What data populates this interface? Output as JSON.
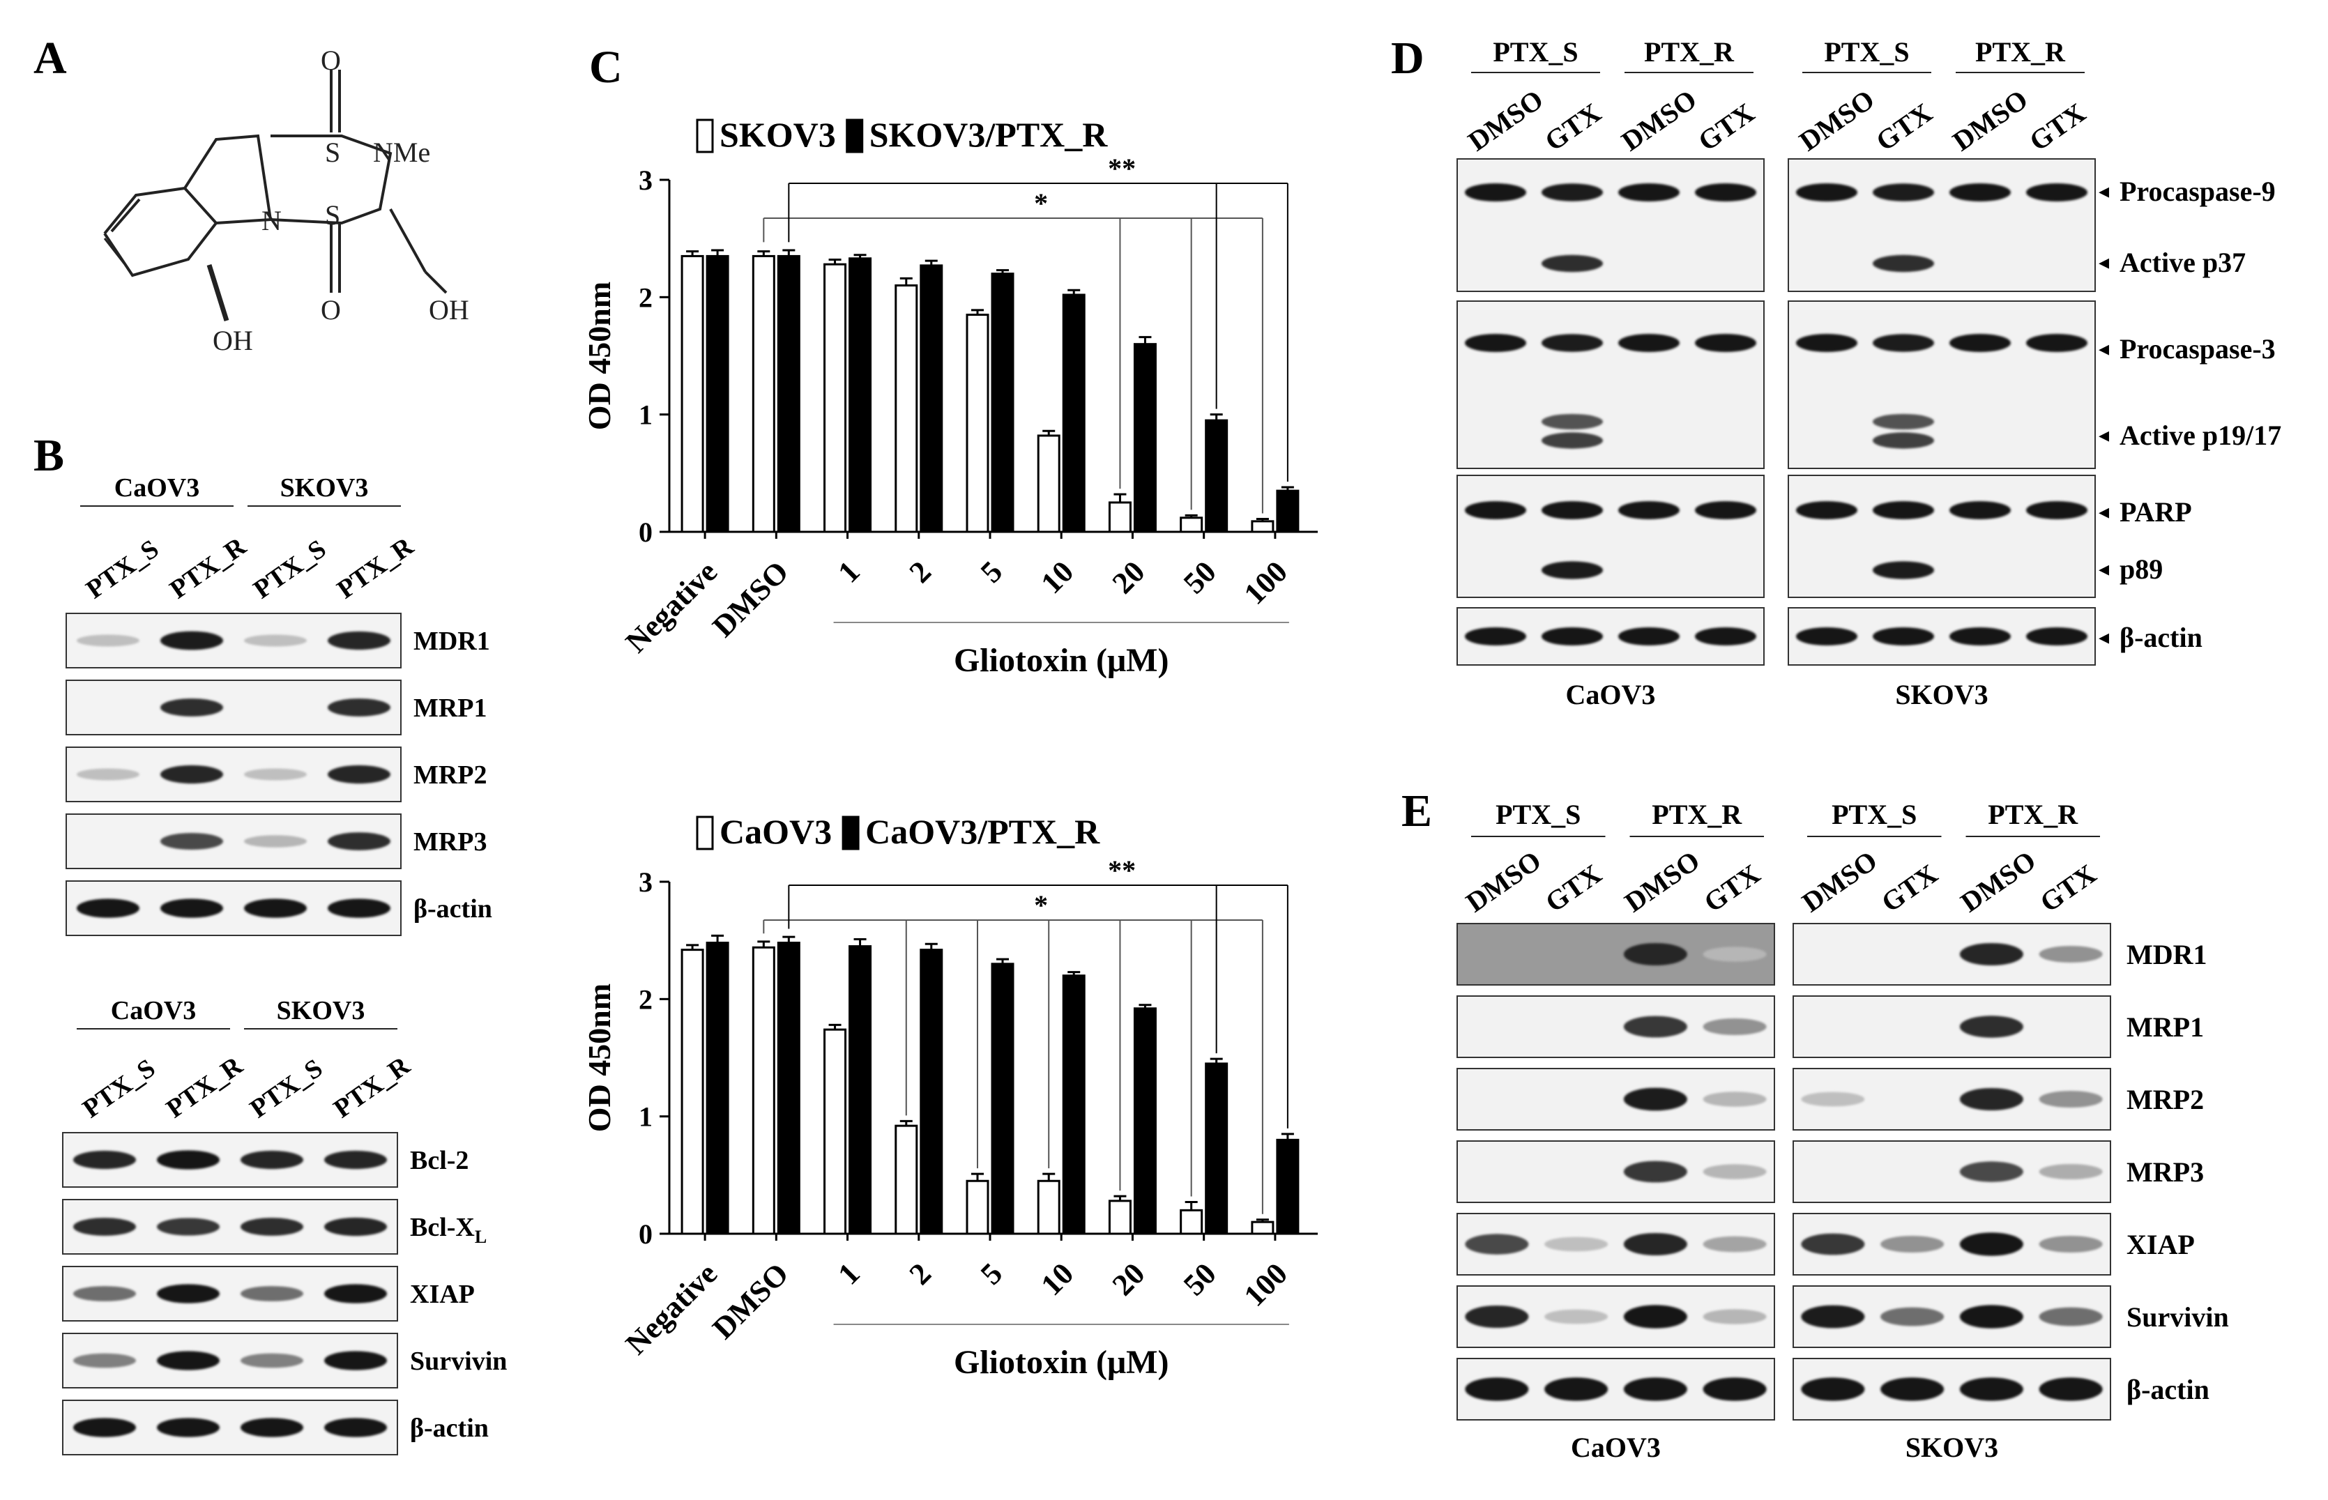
{
  "panels": {
    "A": {
      "letter": "A",
      "atoms": {
        "o_top": "O",
        "s1": "S",
        "nme": "NMe",
        "n": "N",
        "s2": "S",
        "o_bottom": "O",
        "oh_ring": "OH",
        "oh_chain": "OH"
      }
    },
    "B": {
      "letter": "B",
      "blot1": {
        "groups": [
          "CaOV3",
          "SKOV3"
        ],
        "lanes": [
          "PTX_S",
          "PTX_R",
          "PTX_S",
          "PTX_R"
        ],
        "proteins": [
          "MDR1",
          "MRP1",
          "MRP2",
          "MRP3",
          "β-actin"
        ],
        "intensity": [
          [
            0.05,
            0.95,
            0.05,
            0.9
          ],
          [
            0,
            0.85,
            0,
            0.85
          ],
          [
            0.05,
            0.9,
            0.05,
            0.9
          ],
          [
            0,
            0.7,
            0.1,
            0.85
          ],
          [
            1,
            1,
            1,
            1
          ]
        ]
      },
      "blot2": {
        "groups": [
          "CaOV3",
          "SKOV3"
        ],
        "lanes": [
          "PTX_S",
          "PTX_R",
          "PTX_S",
          "PTX_R"
        ],
        "proteins": [
          {
            "main": "Bcl-2",
            "sub": ""
          },
          {
            "main": "Bcl-X",
            "sub": "L"
          },
          {
            "main": "XIAP",
            "sub": ""
          },
          {
            "main": "Survivin",
            "sub": ""
          },
          {
            "main": "β-actin",
            "sub": ""
          }
        ],
        "intensity": [
          [
            0.9,
            1,
            0.9,
            0.9
          ],
          [
            0.85,
            0.8,
            0.85,
            0.9
          ],
          [
            0.5,
            1,
            0.5,
            1
          ],
          [
            0.4,
            1,
            0.4,
            1
          ],
          [
            1,
            1,
            1,
            1
          ]
        ]
      }
    },
    "C": {
      "letter": "C",
      "star_single": "*",
      "star_double": "**"
    },
    "D": {
      "letter": "D",
      "groups": [
        "PTX_S",
        "PTX_R",
        "PTX_S",
        "PTX_R"
      ],
      "lanes": [
        "DMSO",
        "GTX",
        "DMSO",
        "GTX",
        "DMSO",
        "GTX",
        "DMSO",
        "GTX"
      ],
      "cells": [
        "CaOV3",
        "SKOV3"
      ],
      "labels": [
        "Procaspase-9",
        "Active p37",
        "Procaspase-3",
        "Active p19/17",
        "PARP",
        "p89",
        "β-actin"
      ]
    },
    "E": {
      "letter": "E",
      "groups": [
        "PTX_S",
        "PTX_R",
        "PTX_S",
        "PTX_R"
      ],
      "lanes": [
        "DMSO",
        "GTX",
        "DMSO",
        "GTX",
        "DMSO",
        "GTX",
        "DMSO",
        "GTX"
      ],
      "cells": [
        "CaOV3",
        "SKOV3"
      ],
      "proteins": [
        "MDR1",
        "MRP1",
        "MRP2",
        "MRP3",
        "XIAP",
        "Survivin",
        "β-actin"
      ],
      "intensity": [
        [
          [
            0,
            0,
            0.9,
            0.1
          ],
          [
            0,
            0,
            0.9,
            0.3
          ]
        ],
        [
          [
            0,
            0,
            0.8,
            0.3
          ],
          [
            0,
            0,
            0.85,
            0
          ]
        ],
        [
          [
            0,
            0,
            0.95,
            0.1
          ],
          [
            0.05,
            0,
            0.9,
            0.3
          ]
        ],
        [
          [
            0,
            0,
            0.8,
            0.1
          ],
          [
            0,
            0,
            0.7,
            0.15
          ]
        ],
        [
          [
            0.7,
            0.05,
            0.9,
            0.2
          ],
          [
            0.8,
            0.3,
            1,
            0.3
          ]
        ],
        [
          [
            0.9,
            0.05,
            1,
            0.1
          ],
          [
            0.95,
            0.5,
            1,
            0.5
          ]
        ],
        [
          [
            1,
            1,
            1,
            1
          ],
          [
            1,
            1,
            1,
            1
          ]
        ]
      ]
    }
  },
  "chart_data": [
    {
      "type": "bar",
      "title": "",
      "legend": [
        "SKOV3",
        "SKOV3/PTX_R"
      ],
      "legend_colors": [
        "#ffffff",
        "#000000"
      ],
      "categories": [
        "Negative",
        "DMSO",
        "1",
        "2",
        "5",
        "10",
        "20",
        "50",
        "100"
      ],
      "xlabel": "Gliotoxin (μM)",
      "ylabel": "OD 450nm",
      "ylim": [
        0,
        3
      ],
      "yticks": [
        "0",
        "1",
        "2",
        "3"
      ],
      "series": [
        {
          "name": "SKOV3",
          "values": [
            2.35,
            2.35,
            2.28,
            2.1,
            1.85,
            0.82,
            0.25,
            0.12,
            0.09
          ],
          "errors": [
            0.04,
            0.04,
            0.04,
            0.06,
            0.04,
            0.04,
            0.07,
            0.02,
            0.02
          ]
        },
        {
          "name": "SKOV3/PTX_R",
          "values": [
            2.35,
            2.35,
            2.33,
            2.27,
            2.2,
            2.02,
            1.6,
            0.95,
            0.35
          ],
          "errors": [
            0.05,
            0.05,
            0.03,
            0.04,
            0.03,
            0.04,
            0.06,
            0.05,
            0.03
          ]
        }
      ],
      "significance": [
        {
          "label": "*",
          "from": "DMSO",
          "to": [
            "20",
            "50",
            "100"
          ],
          "series": "SKOV3"
        },
        {
          "label": "**",
          "from": "DMSO",
          "to": [
            "50",
            "100"
          ],
          "series": "SKOV3/PTX_R"
        }
      ],
      "grid": false
    },
    {
      "type": "bar",
      "title": "",
      "legend": [
        "CaOV3",
        "CaOV3/PTX_R"
      ],
      "legend_colors": [
        "#ffffff",
        "#000000"
      ],
      "categories": [
        "Negative",
        "DMSO",
        "1",
        "2",
        "5",
        "10",
        "20",
        "50",
        "100"
      ],
      "xlabel": "Gliotoxin (μM)",
      "ylabel": "OD 450nm",
      "ylim": [
        0,
        3
      ],
      "yticks": [
        "0",
        "1",
        "2",
        "3"
      ],
      "series": [
        {
          "name": "CaOV3",
          "values": [
            2.42,
            2.44,
            1.74,
            0.92,
            0.45,
            0.45,
            0.28,
            0.2,
            0.1
          ],
          "errors": [
            0.04,
            0.05,
            0.04,
            0.04,
            0.06,
            0.06,
            0.04,
            0.07,
            0.02
          ]
        },
        {
          "name": "CaOV3/PTX_R",
          "values": [
            2.48,
            2.48,
            2.45,
            2.42,
            2.3,
            2.2,
            1.92,
            1.45,
            0.8
          ],
          "errors": [
            0.06,
            0.05,
            0.06,
            0.05,
            0.04,
            0.03,
            0.03,
            0.04,
            0.05
          ]
        }
      ],
      "significance": [
        {
          "label": "*",
          "from": "DMSO",
          "to": [
            "2",
            "5",
            "10",
            "20",
            "50",
            "100"
          ],
          "series": "CaOV3"
        },
        {
          "label": "**",
          "from": "DMSO",
          "to": [
            "50",
            "100"
          ],
          "series": "CaOV3/PTX_R"
        }
      ],
      "grid": false
    }
  ]
}
